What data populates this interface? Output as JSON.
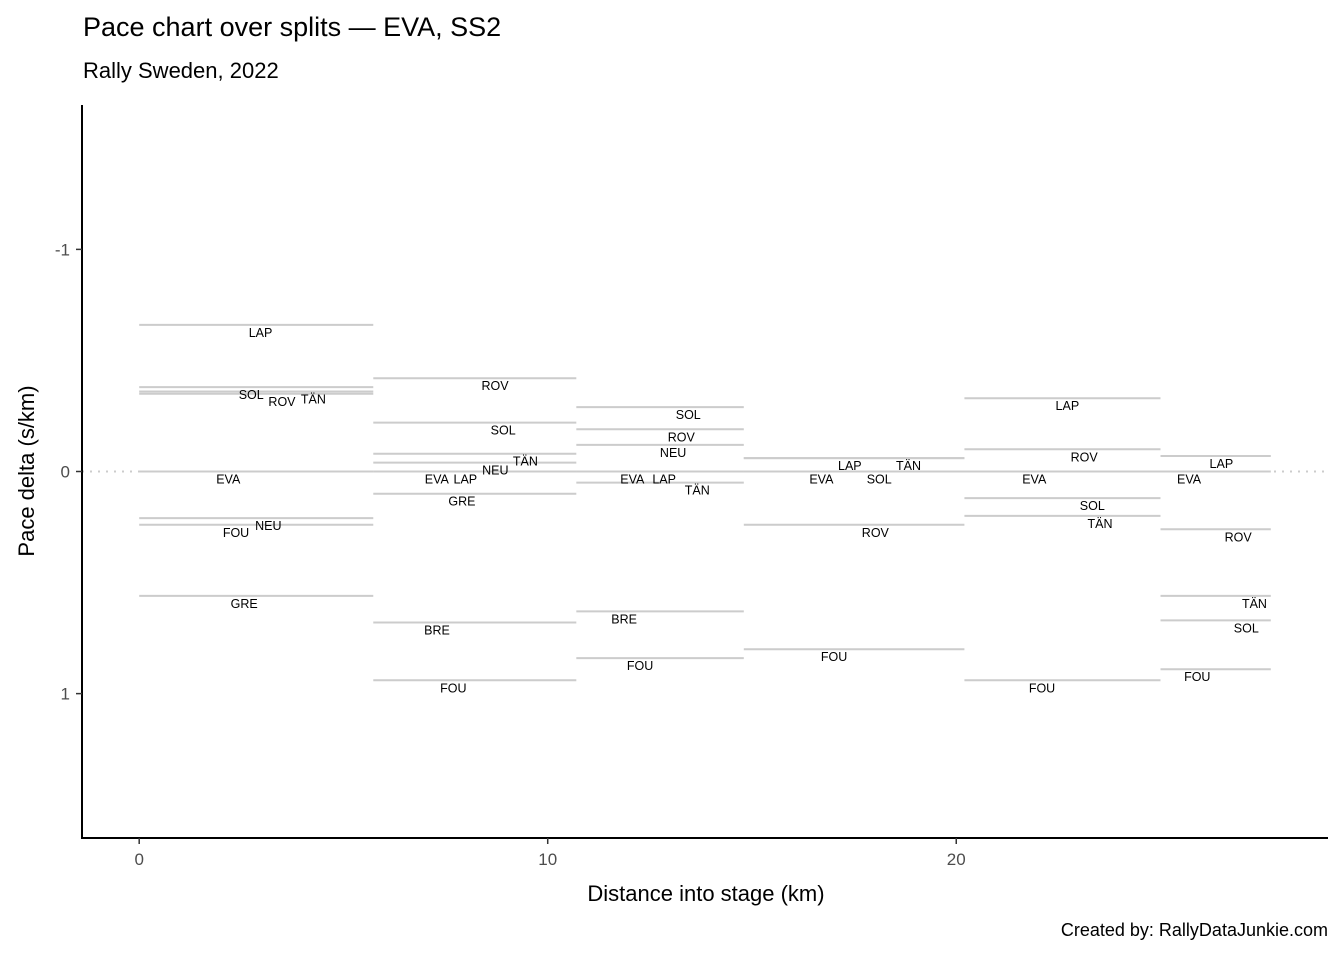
{
  "chart_data": {
    "type": "line",
    "title": "Pace chart over splits — EVA, SS2",
    "subtitle": "Rally Sweden, 2022",
    "caption": "Created by: RallyDataJunkie.com",
    "xlabel": "Distance into stage (km)",
    "ylabel": "Pace delta (s/km)",
    "xlim": [
      -1.4,
      29.1
    ],
    "ylim": [
      -1.65,
      1.65
    ],
    "y_reversed": true,
    "grid": false,
    "reference_line": {
      "y": 0,
      "style": "dotted",
      "color": "#cccccc"
    },
    "segment_color": "#cccccc",
    "x_ticks": [
      0,
      10,
      20
    ],
    "y_ticks": [
      -1,
      0,
      1
    ],
    "x_tick_labels": [
      "0",
      "10",
      "20"
    ],
    "y_tick_labels": [
      "-1",
      "0",
      "1"
    ],
    "splits": [
      {
        "start": 0,
        "end": 5.73,
        "drivers": [
          {
            "code": "LAP",
            "delta": -0.66,
            "label_x": 2.97
          },
          {
            "code": "SOL",
            "delta": -0.38,
            "label_x": 3.5
          },
          {
            "code": "TÄN",
            "delta": -0.36,
            "label_x": 3.65
          },
          {
            "code": "ROV",
            "delta": -0.35,
            "label_x": 3.35
          },
          {
            "code": "EVA",
            "delta": 0,
            "label_x": 2.18
          },
          {
            "code": "NEU",
            "delta": 0.21,
            "label_x": 3.16
          },
          {
            "code": "FOU",
            "delta": 0.24,
            "label_x": 2.37
          },
          {
            "code": "GRE",
            "delta": 0.56,
            "label_x": 2.57
          }
        ]
      },
      {
        "start": 5.73,
        "end": 10.7,
        "drivers": [
          {
            "code": "ROV",
            "delta": -0.42,
            "label_x": 8.71
          },
          {
            "code": "SOL",
            "delta": -0.22,
            "label_x": 8.91
          },
          {
            "code": "TÄN",
            "delta": -0.08,
            "label_x": 9.1
          },
          {
            "code": "NEU",
            "delta": -0.04,
            "label_x": 8.52
          },
          {
            "code": "EVA",
            "delta": 0,
            "label_x": 7.52
          },
          {
            "code": "LAP",
            "delta": 0,
            "label_x": 8.3
          },
          {
            "code": "GRE",
            "delta": 0.1,
            "label_x": 7.9
          },
          {
            "code": "BRE",
            "delta": 0.68,
            "label_x": 7.29
          },
          {
            "code": "FOU",
            "delta": 0.94,
            "label_x": 7.69
          }
        ]
      },
      {
        "start": 10.7,
        "end": 14.8,
        "drivers": [
          {
            "code": "SOL",
            "delta": -0.29,
            "label_x": 13.44
          },
          {
            "code": "ROV",
            "delta": -0.19,
            "label_x": 13.27
          },
          {
            "code": "NEU",
            "delta": -0.12,
            "label_x": 13.07
          },
          {
            "code": "EVA",
            "delta": 0,
            "label_x": 12.07
          },
          {
            "code": "LAP",
            "delta": 0,
            "label_x": 12.85
          },
          {
            "code": "TÄN",
            "delta": 0.05,
            "label_x": 13.66
          },
          {
            "code": "BRE",
            "delta": 0.63,
            "label_x": 11.87
          },
          {
            "code": "FOU",
            "delta": 0.84,
            "label_x": 12.26
          }
        ]
      },
      {
        "start": 14.8,
        "end": 20.2,
        "drivers": [
          {
            "code": "LAP",
            "delta": -0.06,
            "label_x": 17.6
          },
          {
            "code": "TÄN",
            "delta": -0.06,
            "label_x": 18.41
          },
          {
            "code": "EVA",
            "delta": 0,
            "label_x": 16.82
          },
          {
            "code": "SOL",
            "delta": 0,
            "label_x": 18.21
          },
          {
            "code": "ROV",
            "delta": 0.24,
            "label_x": 18.02
          },
          {
            "code": "FOU",
            "delta": 0.8,
            "label_x": 17.01
          }
        ]
      },
      {
        "start": 20.2,
        "end": 25.0,
        "drivers": [
          {
            "code": "LAP",
            "delta": -0.33,
            "label_x": 22.72
          },
          {
            "code": "ROV",
            "delta": -0.1,
            "label_x": 23.13
          },
          {
            "code": "EVA",
            "delta": 0,
            "label_x": 21.91
          },
          {
            "code": "SOL",
            "delta": 0.12,
            "label_x": 23.33
          },
          {
            "code": "TÄN",
            "delta": 0.2,
            "label_x": 23.52
          },
          {
            "code": "FOU",
            "delta": 0.94,
            "label_x": 22.1
          }
        ]
      },
      {
        "start": 25.0,
        "end": 27.7,
        "drivers": [
          {
            "code": "LAP",
            "delta": -0.07,
            "label_x": 26.49
          },
          {
            "code": "EVA",
            "delta": 0,
            "label_x": 25.7
          },
          {
            "code": "ROV",
            "delta": 0.26,
            "label_x": 26.9
          },
          {
            "code": "TÄN",
            "delta": 0.56,
            "label_x": 27.3
          },
          {
            "code": "SOL",
            "delta": 0.67,
            "label_x": 27.1
          },
          {
            "code": "FOU",
            "delta": 0.89,
            "label_x": 25.9
          }
        ]
      }
    ]
  }
}
